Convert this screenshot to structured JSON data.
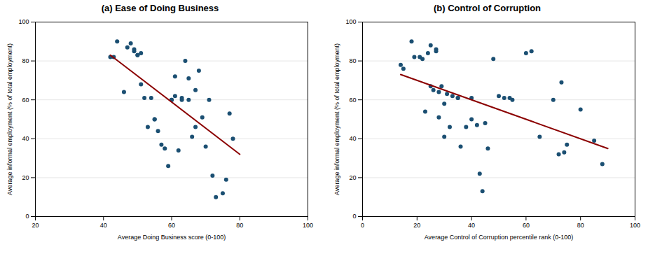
{
  "chart_data": [
    {
      "type": "scatter",
      "title": "(a) Ease of Doing Business",
      "x_label": "Average Doing Business score (0-100)",
      "y_label": "Average informal employment (% of total employment)",
      "xlim": [
        20,
        100
      ],
      "ylim": [
        0,
        100
      ],
      "xticks": [
        20,
        40,
        60,
        80,
        100
      ],
      "yticks": [
        0,
        20,
        40,
        60,
        80,
        100
      ],
      "grid": true,
      "series": [
        {
          "type": "scatter",
          "color": "#1B4F72",
          "marker": "circle",
          "x": [
            42,
            43,
            44,
            46,
            47,
            48,
            49,
            49,
            50,
            50,
            51,
            51,
            52,
            53,
            54,
            55,
            55,
            56,
            57,
            58,
            59,
            60,
            60,
            61,
            61,
            62,
            63,
            63,
            64,
            65,
            65,
            66,
            67,
            67,
            68,
            69,
            70,
            71,
            72,
            73,
            75,
            76,
            77,
            78
          ],
          "values": [
            82,
            82,
            90,
            64,
            87,
            89,
            85,
            86,
            83,
            83,
            84,
            68,
            61,
            46,
            61,
            50,
            50,
            44,
            37,
            35,
            26,
            60,
            60,
            62,
            72,
            34,
            60,
            61,
            80,
            71,
            60,
            41,
            46,
            65,
            75,
            51,
            36,
            60,
            21,
            10,
            12,
            19,
            53,
            40
          ]
        },
        {
          "type": "line",
          "color": "#8B0000",
          "line_style": "solid",
          "x": [
            42,
            80
          ],
          "values": [
            83,
            32
          ]
        }
      ]
    },
    {
      "type": "scatter",
      "title": "(b) Control of Corruption",
      "x_label": "Average Control of Corruption percentile rank (0-100)",
      "y_label": "Average informal employment (% of total employment)",
      "xlim": [
        0,
        100
      ],
      "ylim": [
        0,
        100
      ],
      "xticks": [
        0,
        20,
        40,
        60,
        80,
        100
      ],
      "yticks": [
        0,
        20,
        40,
        60,
        80,
        100
      ],
      "grid": true,
      "series": [
        {
          "type": "scatter",
          "color": "#1B4F72",
          "marker": "circle",
          "x": [
            14,
            15,
            18,
            19,
            21,
            22,
            23,
            24,
            25,
            25,
            26,
            27,
            27,
            28,
            28,
            29,
            30,
            30,
            31,
            32,
            33,
            35,
            35,
            36,
            38,
            40,
            40,
            42,
            43,
            44,
            45,
            46,
            48,
            50,
            52,
            54,
            55,
            60,
            62,
            65,
            70,
            72,
            73,
            74,
            75,
            80,
            85,
            88
          ],
          "values": [
            78,
            76,
            90,
            82,
            82,
            81,
            54,
            84,
            88,
            67,
            65,
            85,
            86,
            64,
            51,
            67,
            41,
            58,
            63,
            46,
            62,
            61,
            61,
            36,
            46,
            50,
            61,
            47,
            22,
            13,
            48,
            35,
            81,
            62,
            61,
            61,
            60,
            84,
            85,
            41,
            60,
            32,
            69,
            33,
            37,
            55,
            39,
            27
          ]
        },
        {
          "type": "line",
          "color": "#8B0000",
          "line_style": "solid",
          "x": [
            14,
            90
          ],
          "values": [
            73,
            35
          ]
        }
      ]
    }
  ]
}
